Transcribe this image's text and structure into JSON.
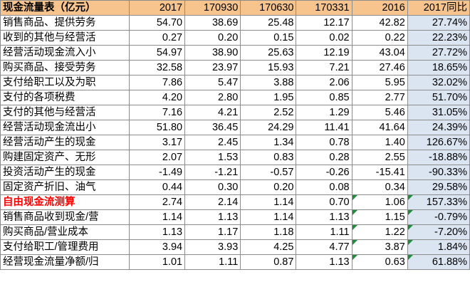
{
  "table": {
    "headers": [
      "现金流量表（亿元）",
      "2017",
      "170930",
      "170630",
      "170331",
      "2016",
      "2017同比"
    ],
    "rows": [
      {
        "label": "销售商品、提供劳务",
        "values": [
          "54.70",
          "38.69",
          "25.48",
          "12.17",
          "42.82"
        ],
        "yoy": "27.74%"
      },
      {
        "label": "收到的其他与经营活",
        "values": [
          "0.27",
          "0.20",
          "0.15",
          "0.02",
          "0.22"
        ],
        "yoy": "22.23%"
      },
      {
        "label": "经营活动现金流入小",
        "values": [
          "54.97",
          "38.90",
          "25.63",
          "12.19",
          "43.04"
        ],
        "yoy": "27.72%"
      },
      {
        "label": "购买商品、接受劳务",
        "values": [
          "32.58",
          "23.97",
          "15.93",
          "7.21",
          "27.46"
        ],
        "yoy": "18.65%"
      },
      {
        "label": "支付给职工以及为职",
        "values": [
          "7.86",
          "5.47",
          "3.88",
          "2.06",
          "5.95"
        ],
        "yoy": "32.02%"
      },
      {
        "label": "支付的各项税费",
        "values": [
          "4.20",
          "2.80",
          "1.95",
          "0.85",
          "2.77"
        ],
        "yoy": "51.70%"
      },
      {
        "label": "支付的其他与经营活",
        "values": [
          "7.16",
          "4.21",
          "2.52",
          "1.29",
          "5.46"
        ],
        "yoy": "31.05%"
      },
      {
        "label": "经营活动现金流出小",
        "values": [
          "51.80",
          "36.45",
          "24.29",
          "11.41",
          "41.64"
        ],
        "yoy": "24.39%"
      },
      {
        "label": "经营活动产生的现金",
        "values": [
          "3.17",
          "2.45",
          "1.34",
          "0.78",
          "1.40"
        ],
        "yoy": "126.67%"
      },
      {
        "label": "购建固定资产、无形",
        "values": [
          "2.07",
          "1.53",
          "0.83",
          "0.28",
          "2.55"
        ],
        "yoy": "-18.88%"
      },
      {
        "label": "投资活动产生的现金",
        "values": [
          "-1.49",
          "-1.21",
          "-0.57",
          "-0.26",
          "-15.41"
        ],
        "yoy": "-90.33%"
      },
      {
        "label": "固定资产折旧、油气",
        "values": [
          "0.44",
          "0.30",
          "0.20",
          "0.08",
          "0.34"
        ],
        "yoy": "29.58%"
      },
      {
        "label": "自由现金流测算",
        "values": [
          "2.74",
          "2.14",
          "1.14",
          "0.70",
          "1.06"
        ],
        "yoy": "157.33%"
      },
      {
        "label": "销售商品收到现金/营",
        "values": [
          "1.14",
          "1.13",
          "1.14",
          "1.13",
          "1.15"
        ],
        "yoy": "-0.79%"
      },
      {
        "label": "购买商品/营业成本",
        "values": [
          "1.13",
          "1.17",
          "1.18",
          "1.11",
          "1.22"
        ],
        "yoy": "-7.20%"
      },
      {
        "label": "支付给职工/管理费用",
        "values": [
          "3.94",
          "3.93",
          "4.25",
          "4.77",
          "3.87"
        ],
        "yoy": "1.84%"
      },
      {
        "label": "经营现金流量净额/归",
        "values": [
          "1.01",
          "1.11",
          "0.87",
          "1.13",
          "0.63"
        ],
        "yoy": "61.88%"
      }
    ]
  },
  "colors": {
    "header_fill": "#f8c48d",
    "yoy_fill": "#dbe5f1",
    "highlight_text": "#ff0000",
    "flag_marker": "#1e8e3e",
    "gridline": "#8c8c8c"
  }
}
